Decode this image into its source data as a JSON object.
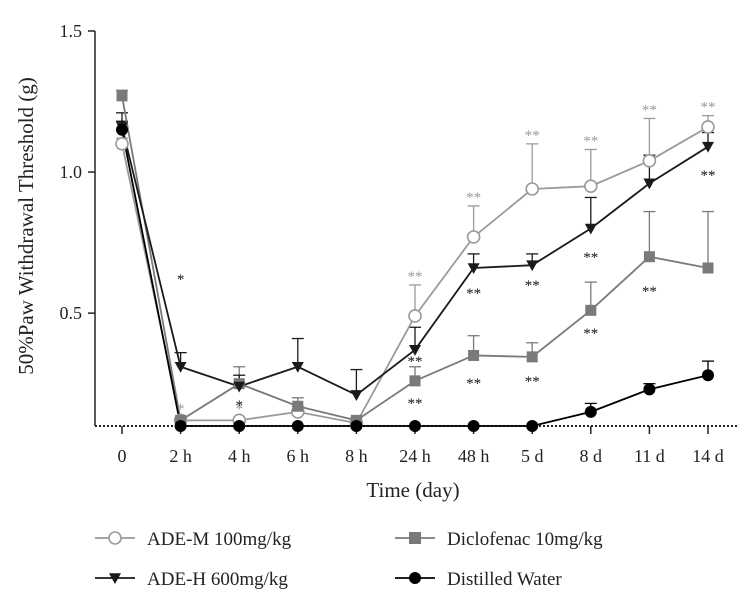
{
  "chart_data": {
    "type": "line",
    "title": "",
    "xlabel": "Time (day)",
    "ylabel": "50%Paw Withdrawal Threshold (g)",
    "categories": [
      "0",
      "2 h",
      "4 h",
      "6 h",
      "8 h",
      "24 h",
      "48 h",
      "5 d",
      "8 d",
      "11 d",
      "14 d"
    ],
    "yticks": [
      "0.5",
      "1.0",
      "1.5"
    ],
    "ylim": [
      0.1,
      1.5
    ],
    "legend_position": "bottom",
    "grid": false,
    "series": [
      {
        "name": "ADE-M 100mg/kg",
        "marker": "open-circle",
        "color": "#9a9a9a",
        "values": [
          1.1,
          0.12,
          0.12,
          0.15,
          0.11,
          0.49,
          0.77,
          0.94,
          0.95,
          1.04,
          1.16
        ],
        "error": [
          0.02,
          0.01,
          0.01,
          0.02,
          0.01,
          0.11,
          0.11,
          0.16,
          0.13,
          0.15,
          0.04
        ],
        "sig_above": [
          "",
          "*",
          "*",
          "",
          "",
          "**",
          "**",
          "**",
          "**",
          "**",
          "**"
        ]
      },
      {
        "name": "Diclofenac 10mg/kg",
        "marker": "filled-square",
        "color": "#7a7a7a",
        "values": [
          1.27,
          0.12,
          0.25,
          0.17,
          0.12,
          0.26,
          0.35,
          0.345,
          0.51,
          0.7,
          0.66
        ],
        "error": [
          0.02,
          0.01,
          0.06,
          0.03,
          0.01,
          0.05,
          0.07,
          0.05,
          0.1,
          0.16,
          0.2
        ],
        "sig_above": [
          "",
          "",
          "",
          "",
          "",
          "",
          "",
          "",
          "",
          "",
          ""
        ]
      },
      {
        "name": "ADE-H 600mg/kg",
        "marker": "filled-triangle-down",
        "color": "#1a1a1a",
        "values": [
          1.16,
          0.31,
          0.24,
          0.31,
          0.21,
          0.37,
          0.66,
          0.67,
          0.8,
          0.96,
          1.09
        ],
        "error": [
          0.05,
          0.05,
          0.04,
          0.1,
          0.09,
          0.08,
          0.05,
          0.04,
          0.11,
          0.1,
          0.05
        ],
        "sig_above": [
          "",
          "",
          "",
          "",
          "",
          "",
          "",
          "",
          "",
          "",
          ""
        ]
      },
      {
        "name": "Distilled Water",
        "marker": "filled-circle",
        "color": "#000000",
        "values": [
          1.15,
          0.1,
          0.1,
          0.1,
          0.1,
          0.1,
          0.1,
          0.1,
          0.15,
          0.23,
          0.28
        ],
        "error": [
          0.03,
          0.0,
          0.0,
          0.0,
          0.0,
          0.0,
          0.0,
          0.0,
          0.03,
          0.02,
          0.05
        ],
        "sig_above": [
          "",
          "",
          "",
          "",
          "",
          "",
          "",
          "",
          "",
          "",
          ""
        ]
      }
    ],
    "annotations_below": [
      {
        "category": "2 h",
        "text": "*"
      },
      {
        "category": "4 h",
        "text": "*"
      },
      {
        "category": "24 h",
        "text": "**"
      },
      {
        "category": "24 h",
        "text": "**"
      },
      {
        "category": "48 h",
        "text": "**"
      },
      {
        "category": "48 h",
        "text": "**"
      },
      {
        "category": "5 d",
        "text": "**"
      },
      {
        "category": "5 d",
        "text": "**"
      },
      {
        "category": "8 d",
        "text": "**"
      },
      {
        "category": "8 d",
        "text": "**"
      },
      {
        "category": "11 d",
        "text": "**"
      },
      {
        "category": "14 d",
        "text": "**"
      }
    ]
  }
}
